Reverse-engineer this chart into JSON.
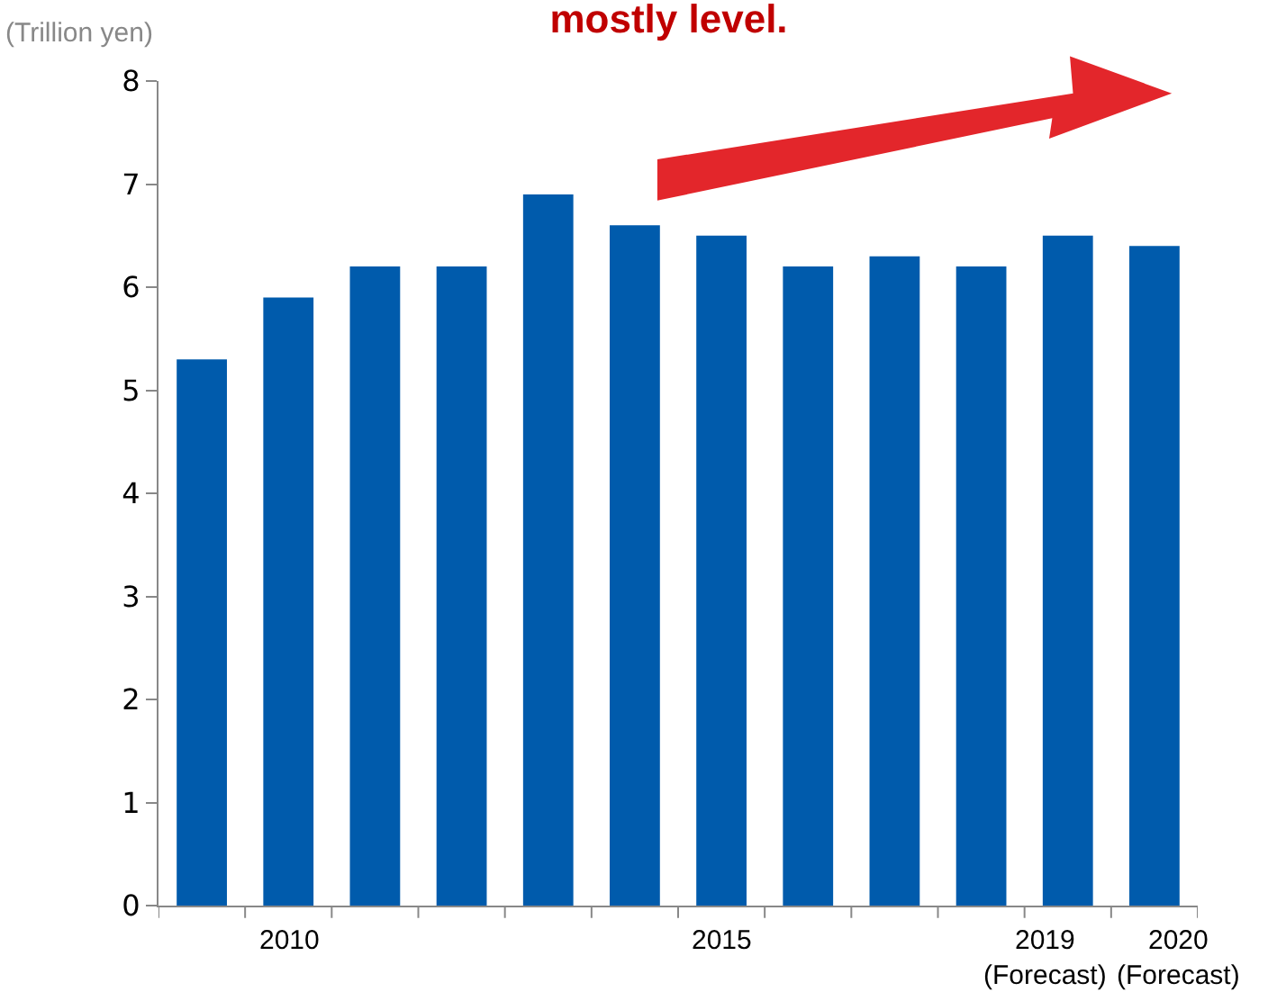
{
  "chart_data": {
    "type": "bar",
    "title": "mostly level.",
    "ylabel": "(Trillion yen)",
    "categories": [
      null,
      "2010",
      null,
      null,
      null,
      null,
      "2015",
      null,
      null,
      null,
      "2019\n(Forecast)",
      "2020\n(Forecast)"
    ],
    "values": [
      5.3,
      5.9,
      6.2,
      6.2,
      6.9,
      6.6,
      6.5,
      6.2,
      6.3,
      6.2,
      6.5,
      6.4
    ],
    "color": "#005bac",
    "ylim": [
      0,
      8
    ],
    "yticks": [
      0,
      1,
      2,
      3,
      4,
      5,
      6,
      7,
      8
    ]
  }
}
